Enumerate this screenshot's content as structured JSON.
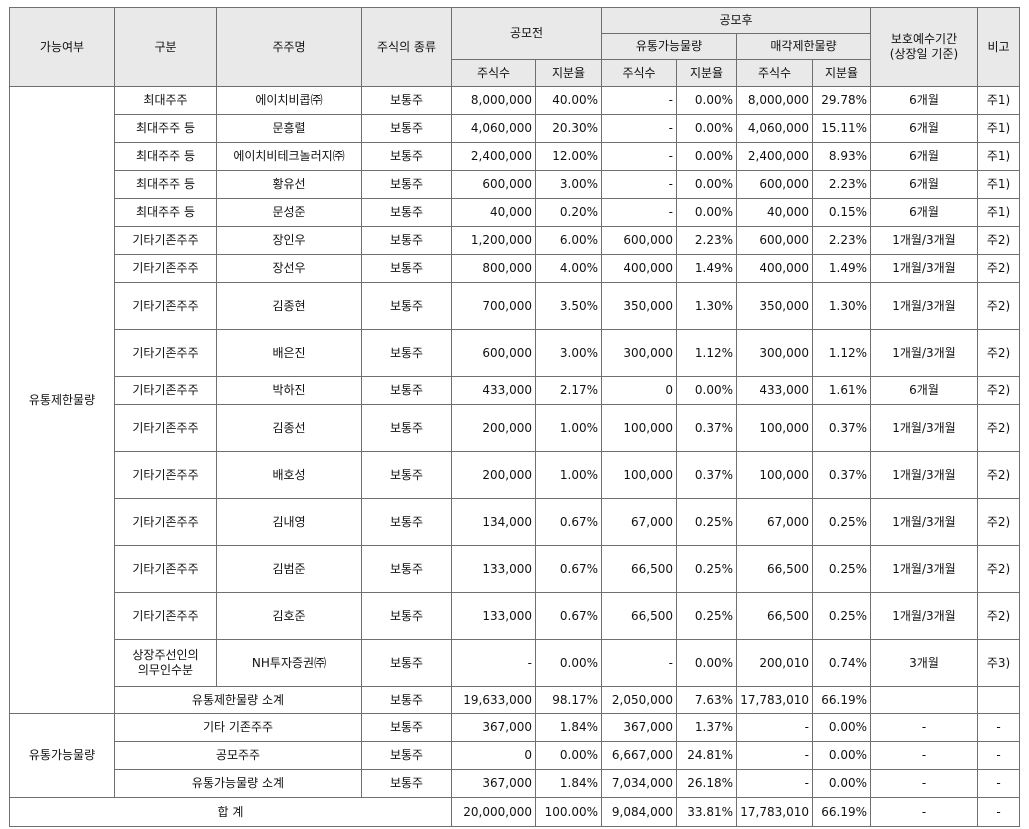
{
  "headers": {
    "availability": "가능여부",
    "category": "구분",
    "holder": "주주명",
    "stock_type": "주식의 종류",
    "pre_ipo": "공모전",
    "post_ipo": "공모후",
    "tradable": "유통가능물량",
    "restricted": "매각제한물량",
    "lockup": [
      "보호예수기간",
      "(상장일 기준)"
    ],
    "note": "비고",
    "shares": "주식수",
    "ratio": "지분율"
  },
  "restricted_group_label": "유통제한물량",
  "available_group_label": "유통가능물량",
  "restricted_rows": [
    {
      "category": "최대주주",
      "holder": "에이치비콥㈜",
      "type": "보통주",
      "pre_shares": "8,000,000",
      "pre_ratio": "40.00%",
      "trad_shares": "-",
      "trad_ratio": "0.00%",
      "rest_shares": "8,000,000",
      "rest_ratio": "29.78%",
      "lockup": "6개월",
      "note": "주1)"
    },
    {
      "category": "최대주주 등",
      "holder": "문흥렬",
      "type": "보통주",
      "pre_shares": "4,060,000",
      "pre_ratio": "20.30%",
      "trad_shares": "-",
      "trad_ratio": "0.00%",
      "rest_shares": "4,060,000",
      "rest_ratio": "15.11%",
      "lockup": "6개월",
      "note": "주1)"
    },
    {
      "category": "최대주주 등",
      "holder": "에이치비테크놀러지㈜",
      "type": "보통주",
      "pre_shares": "2,400,000",
      "pre_ratio": "12.00%",
      "trad_shares": "-",
      "trad_ratio": "0.00%",
      "rest_shares": "2,400,000",
      "rest_ratio": "8.93%",
      "lockup": "6개월",
      "note": "주1)"
    },
    {
      "category": "최대주주 등",
      "holder": "황유선",
      "type": "보통주",
      "pre_shares": "600,000",
      "pre_ratio": "3.00%",
      "trad_shares": "-",
      "trad_ratio": "0.00%",
      "rest_shares": "600,000",
      "rest_ratio": "2.23%",
      "lockup": "6개월",
      "note": "주1)"
    },
    {
      "category": "최대주주 등",
      "holder": "문성준",
      "type": "보통주",
      "pre_shares": "40,000",
      "pre_ratio": "0.20%",
      "trad_shares": "-",
      "trad_ratio": "0.00%",
      "rest_shares": "40,000",
      "rest_ratio": "0.15%",
      "lockup": "6개월",
      "note": "주1)"
    },
    {
      "category": "기타기존주주",
      "holder": "장인우",
      "type": "보통주",
      "pre_shares": "1,200,000",
      "pre_ratio": "6.00%",
      "trad_shares": "600,000",
      "trad_ratio": "2.23%",
      "rest_shares": "600,000",
      "rest_ratio": "2.23%",
      "lockup": "1개월/3개월",
      "note": "주2)"
    },
    {
      "category": "기타기존주주",
      "holder": "장선우",
      "type": "보통주",
      "pre_shares": "800,000",
      "pre_ratio": "4.00%",
      "trad_shares": "400,000",
      "trad_ratio": "1.49%",
      "rest_shares": "400,000",
      "rest_ratio": "1.49%",
      "lockup": "1개월/3개월",
      "note": "주2)"
    },
    {
      "category": "기타기존주주",
      "holder": "김종현",
      "type": "보통주",
      "pre_shares": "700,000",
      "pre_ratio": "3.50%",
      "trad_shares": "350,000",
      "trad_ratio": "1.30%",
      "rest_shares": "350,000",
      "rest_ratio": "1.30%",
      "lockup": "1개월/3개월",
      "note": "주2)"
    },
    {
      "category": "기타기존주주",
      "holder": "배은진",
      "type": "보통주",
      "pre_shares": "600,000",
      "pre_ratio": "3.00%",
      "trad_shares": "300,000",
      "trad_ratio": "1.12%",
      "rest_shares": "300,000",
      "rest_ratio": "1.12%",
      "lockup": "1개월/3개월",
      "note": "주2)"
    },
    {
      "category": "기타기존주주",
      "holder": "박하진",
      "type": "보통주",
      "pre_shares": "433,000",
      "pre_ratio": "2.17%",
      "trad_shares": "0",
      "trad_ratio": "0.00%",
      "rest_shares": "433,000",
      "rest_ratio": "1.61%",
      "lockup": "6개월",
      "note": "주2)"
    },
    {
      "category": "기타기존주주",
      "holder": "김종선",
      "type": "보통주",
      "pre_shares": "200,000",
      "pre_ratio": "1.00%",
      "trad_shares": "100,000",
      "trad_ratio": "0.37%",
      "rest_shares": "100,000",
      "rest_ratio": "0.37%",
      "lockup": "1개월/3개월",
      "note": "주2)"
    },
    {
      "category": "기타기존주주",
      "holder": "배호성",
      "type": "보통주",
      "pre_shares": "200,000",
      "pre_ratio": "1.00%",
      "trad_shares": "100,000",
      "trad_ratio": "0.37%",
      "rest_shares": "100,000",
      "rest_ratio": "0.37%",
      "lockup": "1개월/3개월",
      "note": "주2)"
    },
    {
      "category": "기타기존주주",
      "holder": "김내영",
      "type": "보통주",
      "pre_shares": "134,000",
      "pre_ratio": "0.67%",
      "trad_shares": "67,000",
      "trad_ratio": "0.25%",
      "rest_shares": "67,000",
      "rest_ratio": "0.25%",
      "lockup": "1개월/3개월",
      "note": "주2)"
    },
    {
      "category": "기타기존주주",
      "holder": "김범준",
      "type": "보통주",
      "pre_shares": "133,000",
      "pre_ratio": "0.67%",
      "trad_shares": "66,500",
      "trad_ratio": "0.25%",
      "rest_shares": "66,500",
      "rest_ratio": "0.25%",
      "lockup": "1개월/3개월",
      "note": "주2)"
    },
    {
      "category": "기타기존주주",
      "holder": "김호준",
      "type": "보통주",
      "pre_shares": "133,000",
      "pre_ratio": "0.67%",
      "trad_shares": "66,500",
      "trad_ratio": "0.25%",
      "rest_shares": "66,500",
      "rest_ratio": "0.25%",
      "lockup": "1개월/3개월",
      "note": "주2)"
    },
    {
      "category": [
        "상장주선인의",
        "의무인수분"
      ],
      "holder": "NH투자증권㈜",
      "type": "보통주",
      "pre_shares": "-",
      "pre_ratio": "0.00%",
      "trad_shares": "-",
      "trad_ratio": "0.00%",
      "rest_shares": "200,010",
      "rest_ratio": "0.74%",
      "lockup": "3개월",
      "note": "주3)"
    }
  ],
  "restricted_subtotal": {
    "label": "유통제한물량 소계",
    "type": "보통주",
    "pre_shares": "19,633,000",
    "pre_ratio": "98.17%",
    "trad_shares": "2,050,000",
    "trad_ratio": "7.63%",
    "rest_shares": "17,783,010",
    "rest_ratio": "66.19%",
    "lockup": "",
    "note": ""
  },
  "available_rows": [
    {
      "category": "기타 기존주주",
      "type": "보통주",
      "pre_shares": "367,000",
      "pre_ratio": "1.84%",
      "trad_shares": "367,000",
      "trad_ratio": "1.37%",
      "rest_shares": "-",
      "rest_ratio": "0.00%",
      "lockup": "-",
      "note": "-"
    },
    {
      "category": "공모주주",
      "type": "보통주",
      "pre_shares": "0",
      "pre_ratio": "0.00%",
      "trad_shares": "6,667,000",
      "trad_ratio": "24.81%",
      "rest_shares": "-",
      "rest_ratio": "0.00%",
      "lockup": "-",
      "note": "-"
    },
    {
      "category": "유통가능물량 소계",
      "type": "보통주",
      "pre_shares": "367,000",
      "pre_ratio": "1.84%",
      "trad_shares": "7,034,000",
      "trad_ratio": "26.18%",
      "rest_shares": "-",
      "rest_ratio": "0.00%",
      "lockup": "-",
      "note": "-"
    }
  ],
  "total": {
    "label": "합 계",
    "pre_shares": "20,000,000",
    "pre_ratio": "100.00%",
    "trad_shares": "9,084,000",
    "trad_ratio": "33.81%",
    "rest_shares": "17,783,010",
    "rest_ratio": "66.19%",
    "lockup": "-",
    "note": "-"
  }
}
